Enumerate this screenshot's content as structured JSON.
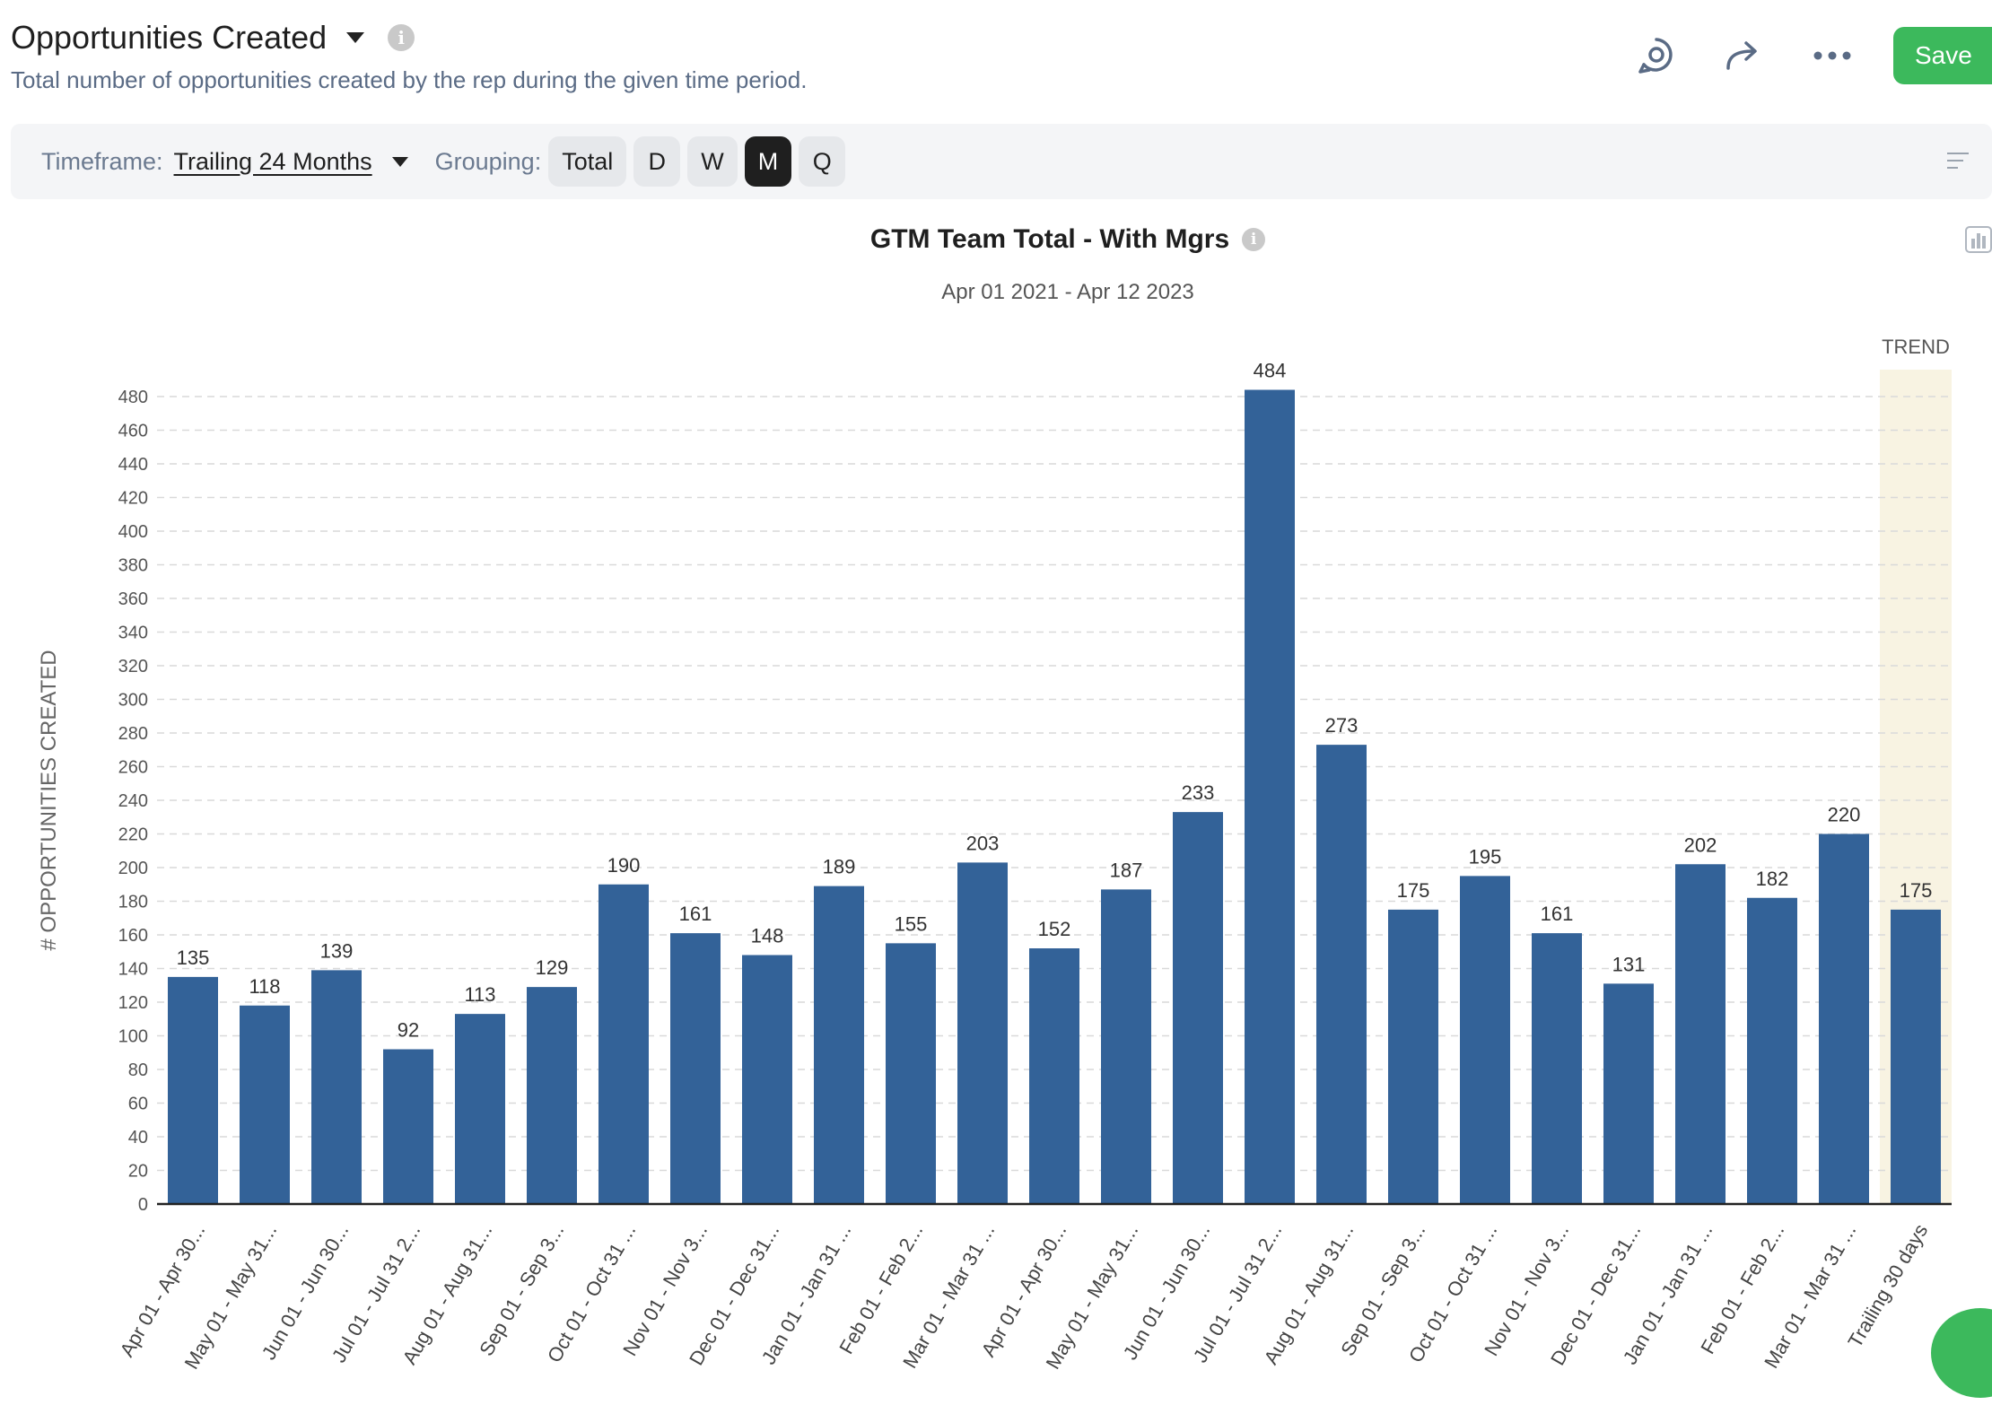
{
  "header": {
    "title": "Opportunities Created",
    "info_glyph": "i",
    "subtitle": "Total number of opportunities created by the rep during the given time period."
  },
  "actions": {
    "save_label": "Save",
    "icons": [
      "refresh-chat-icon",
      "share-arrow-icon",
      "more-dots-icon"
    ]
  },
  "filters": {
    "timeframe_label": "Timeframe:",
    "timeframe_value": "Trailing 24 Months",
    "grouping_label": "Grouping:",
    "grouping_options": [
      "Total",
      "D",
      "W",
      "M",
      "Q"
    ],
    "grouping_selected": "M"
  },
  "colors": {
    "bar": "#336298",
    "trend_bg": "#f8f3e2",
    "save_green": "#3cb95c",
    "grid": "#d9d9d9"
  },
  "chart_data": {
    "type": "bar",
    "title": "GTM Team Total - With Mgrs",
    "subtitle": "Apr 01 2021 - Apr 12 2023",
    "ylabel": "# OPPORTUNITIES CREATED",
    "ylim": [
      0,
      480
    ],
    "y_ticks": [
      0,
      20,
      40,
      60,
      80,
      100,
      120,
      140,
      160,
      180,
      200,
      220,
      240,
      260,
      280,
      300,
      320,
      340,
      360,
      380,
      400,
      420,
      440,
      460,
      480
    ],
    "grid": true,
    "trend_label": "TREND",
    "categories": [
      "Apr 01 - Apr 30...",
      "May 01 - May 31...",
      "Jun 01 - Jun 30...",
      "Jul 01 - Jul 31 2...",
      "Aug 01 - Aug 31...",
      "Sep 01 - Sep 3...",
      "Oct 01 - Oct 31 ...",
      "Nov 01 - Nov 3...",
      "Dec 01 - Dec 31...",
      "Jan 01 - Jan 31 ...",
      "Feb 01 - Feb 2...",
      "Mar 01 - Mar 31 ...",
      "Apr 01 - Apr 30...",
      "May 01 - May 31...",
      "Jun 01 - Jun 30...",
      "Jul 01 - Jul 31 2...",
      "Aug 01 - Aug 31...",
      "Sep 01 - Sep 3...",
      "Oct 01 - Oct 31 ...",
      "Nov 01 - Nov 3...",
      "Dec 01 - Dec 31...",
      "Jan 01 - Jan 31 ...",
      "Feb 01 - Feb 2...",
      "Mar 01 - Mar 31 ...",
      "Trailing 30 days"
    ],
    "values": [
      135,
      118,
      139,
      92,
      113,
      129,
      190,
      161,
      148,
      189,
      155,
      203,
      152,
      187,
      233,
      484,
      273,
      175,
      195,
      161,
      131,
      202,
      182,
      220,
      175
    ],
    "trend_index": 24
  }
}
